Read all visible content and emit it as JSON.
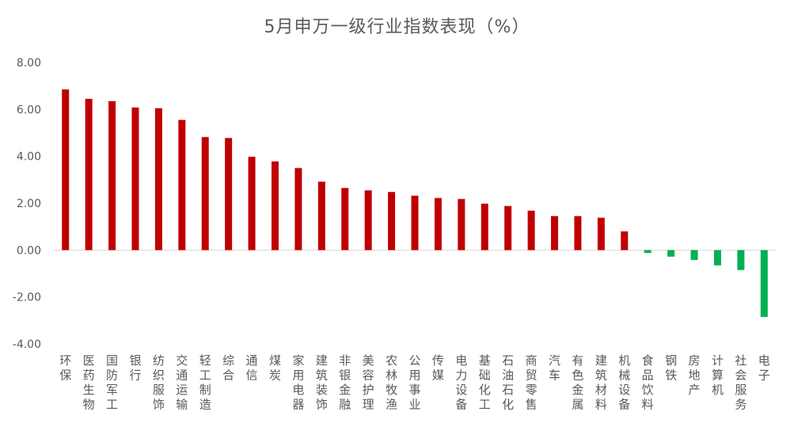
{
  "chart_data": {
    "type": "bar",
    "title": "5月申万一级行业指数表现（%）",
    "xlabel": "",
    "ylabel": "",
    "ylim": [
      -4,
      8
    ],
    "yticks": [
      "8.00",
      "6.00",
      "4.00",
      "2.00",
      "0.00",
      "-2.00",
      "-4.00"
    ],
    "grid": false,
    "legend": "none",
    "colors": {
      "positive": "#C00000",
      "negative": "#00B050",
      "axis_text": "#595959",
      "zero_line": "#D9D9D9"
    },
    "categories": [
      "环保",
      "医药生物",
      "国防军工",
      "银行",
      "纺织服饰",
      "交通运输",
      "轻工制造",
      "综合",
      "通信",
      "煤炭",
      "家用电器",
      "建筑装饰",
      "非银金融",
      "美容护理",
      "农林牧渔",
      "公用事业",
      "传媒",
      "电力设备",
      "基础化工",
      "石油石化",
      "商贸零售",
      "汽车",
      "有色金属",
      "建筑材料",
      "机械设备",
      "食品饮料",
      "钢铁",
      "房地产",
      "计算机",
      "社会服务",
      "电子"
    ],
    "values": [
      6.85,
      6.45,
      6.35,
      6.08,
      6.05,
      5.55,
      4.82,
      4.78,
      3.98,
      3.78,
      3.5,
      2.92,
      2.65,
      2.55,
      2.48,
      2.32,
      2.22,
      2.18,
      1.98,
      1.88,
      1.68,
      1.45,
      1.45,
      1.38,
      0.8,
      -0.12,
      -0.28,
      -0.42,
      -0.65,
      -0.85,
      -2.85
    ]
  }
}
